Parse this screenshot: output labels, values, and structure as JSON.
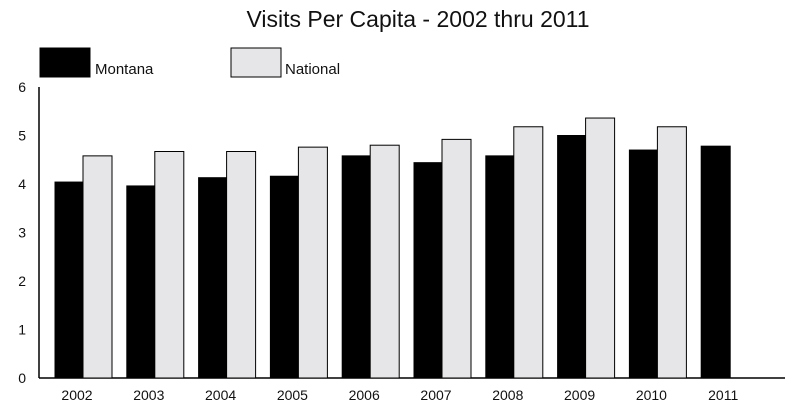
{
  "chart_data": {
    "type": "bar",
    "title": "Visits Per Capita - 2002 thru 2011",
    "xlabel": "",
    "ylabel": "",
    "categories": [
      "2002",
      "2003",
      "2004",
      "2005",
      "2006",
      "2007",
      "2008",
      "2009",
      "2010",
      "2011"
    ],
    "series": [
      {
        "name": "Montana",
        "color": "#000000",
        "values": [
          4.04,
          3.96,
          4.13,
          4.16,
          4.58,
          4.44,
          4.58,
          5.0,
          4.7,
          4.78
        ]
      },
      {
        "name": "National",
        "color": "#e6e6e8",
        "values": [
          4.58,
          4.67,
          4.67,
          4.76,
          4.8,
          4.92,
          5.18,
          5.36,
          5.18,
          null
        ]
      }
    ],
    "ylim": [
      0,
      6
    ],
    "yticks": [
      "0",
      "1",
      "2",
      "3",
      "4",
      "5",
      "6"
    ],
    "grid": false,
    "legend": "top-left"
  }
}
